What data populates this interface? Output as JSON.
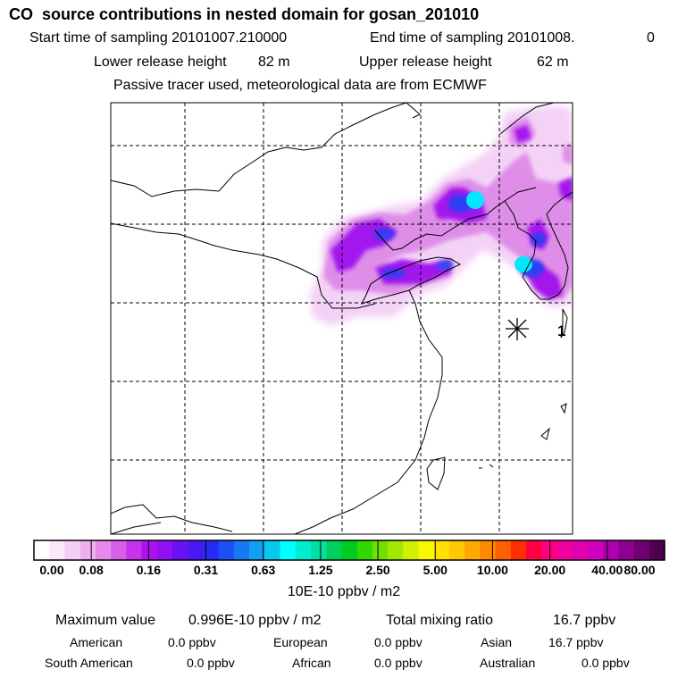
{
  "header": {
    "title": "CO  source contributions in nested domain for gosan_201010",
    "start_label": "Start time of sampling 20101007.210000",
    "end_label": "End time of sampling 20101008.",
    "end_value": "0",
    "lower_label": "Lower release height",
    "lower_value": "82 m",
    "upper_label": "Upper release height",
    "upper_value": "62 m",
    "note": "Passive tracer used, meteorological data are from ECMWF"
  },
  "map": {
    "receptor_label": "1"
  },
  "colorbar": {
    "labels": [
      "0.00",
      "0.08",
      "0.16",
      "0.31",
      "0.63",
      "1.25",
      "2.50",
      "5.00",
      "10.00",
      "20.00",
      "40.00",
      "80.00"
    ],
    "colors": [
      "#ffffff",
      "#fbe6fb",
      "#f6cdf6",
      "#f0b0f0",
      "#e58ae8",
      "#d860e6",
      "#c633ec",
      "#b010ee",
      "#9010f2",
      "#6a10f2",
      "#4a18f4",
      "#2a2af6",
      "#1a50f6",
      "#1878f4",
      "#10a0f2",
      "#08c8f0",
      "#00ffff",
      "#00ecd0",
      "#00e0a0",
      "#00d060",
      "#00cc20",
      "#30d800",
      "#70e000",
      "#a0e800",
      "#d0f000",
      "#f8f800",
      "#ffe000",
      "#ffc800",
      "#ffa800",
      "#ff8800",
      "#ff6000",
      "#ff3000",
      "#ff0040",
      "#ff0080",
      "#f000a0",
      "#e000b0",
      "#d000c0",
      "#b000b0",
      "#900090",
      "#700070",
      "#500050"
    ],
    "unit": "10E-10 ppbv / m2"
  },
  "stats": {
    "max_label": "Maximum value",
    "max_value": "0.996E-10 ppbv / m2",
    "total_label": "Total mixing ratio",
    "total_value": "16.7 ppbv",
    "sources": [
      {
        "name": "American",
        "value": "0.0 ppbv"
      },
      {
        "name": "European",
        "value": "0.0 ppbv"
      },
      {
        "name": "Asian",
        "value": "16.7 ppbv"
      },
      {
        "name": "South American",
        "value": "0.0 ppbv"
      },
      {
        "name": "African",
        "value": "0.0 ppbv"
      },
      {
        "name": "Australian",
        "value": "0.0 ppbv"
      }
    ]
  }
}
